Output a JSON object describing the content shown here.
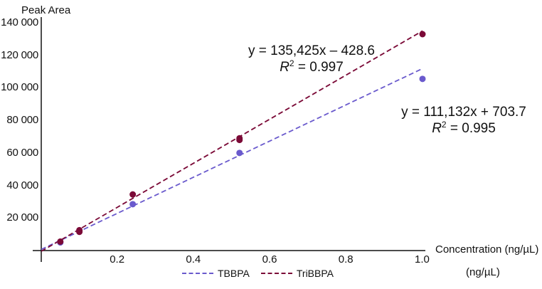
{
  "chart_data": {
    "type": "scatter",
    "title": "",
    "xlabel": "Concentration (ng/µL)",
    "xlabel_unit_repeat": "(ng/µL)",
    "ylabel": "Peak Area",
    "xlim": [
      0,
      1.0
    ],
    "ylim": [
      0,
      140000
    ],
    "x_ticks": [
      "0.2",
      "0.4",
      "0.6",
      "0.8",
      "1.0"
    ],
    "y_ticks": [
      "20 000",
      "40 000",
      "60 000",
      "80 000",
      "100 000",
      "120 000",
      "140 000"
    ],
    "grid": false,
    "legend_position": "bottom",
    "series": [
      {
        "name": "TBBPA",
        "color": "#6a5acd",
        "points": [
          [
            0.05,
            5000
          ],
          [
            0.1,
            12000
          ],
          [
            0.24,
            28500
          ],
          [
            0.52,
            60000
          ],
          [
            1.0,
            105500
          ]
        ],
        "fit": {
          "slope": 111132,
          "intercept": 703.7,
          "r2": 0.995,
          "style": "dashed"
        },
        "equation": "y = 111,132x + 703.7",
        "r2_label": "= 0.995"
      },
      {
        "name": "TriBBPA",
        "color": "#7b0a37",
        "points": [
          [
            0.05,
            5500
          ],
          [
            0.1,
            12500
          ],
          [
            0.1,
            11500
          ],
          [
            0.24,
            34500
          ],
          [
            0.52,
            69000
          ],
          [
            0.52,
            68000
          ],
          [
            1.0,
            133000
          ]
        ],
        "fit": {
          "slope": 135425,
          "intercept": -428.6,
          "r2": 0.997,
          "style": "dashed"
        },
        "equation": "y = 135,425x – 428.6",
        "r2_label": "= 0.997"
      }
    ]
  },
  "annotations": {
    "r_symbol": "R",
    "r_sup": "2"
  }
}
